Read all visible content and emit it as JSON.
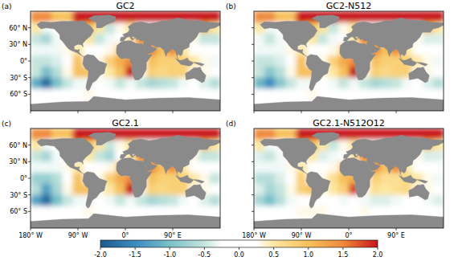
{
  "chart_data": {
    "type": "heatmap",
    "x": [
      -170,
      -150,
      -130,
      -110,
      -90,
      -70,
      -50,
      -30,
      -10,
      10,
      30,
      50,
      70,
      90,
      110,
      130,
      150,
      170
    ],
    "y": [
      80,
      60,
      40,
      20,
      0,
      -20,
      -40,
      -60,
      -80
    ],
    "xlim": [
      -180,
      180
    ],
    "ylim": [
      -90,
      90
    ],
    "xticks": [
      {
        "value": -180,
        "label": "180° W"
      },
      {
        "value": -90,
        "label": "90° W"
      },
      {
        "value": 0,
        "label": "0°"
      },
      {
        "value": 90,
        "label": "90° E"
      }
    ],
    "yticks": [
      {
        "value": 60,
        "label": "60° N"
      },
      {
        "value": 30,
        "label": "30° N"
      },
      {
        "value": 0,
        "label": "0°"
      },
      {
        "value": -30,
        "label": "30° S"
      },
      {
        "value": -60,
        "label": "60° S"
      }
    ],
    "color_range": [
      -2,
      2
    ],
    "color_ticks": [
      {
        "value": -2,
        "label": "-2.0"
      },
      {
        "value": -1.5,
        "label": "-1.5"
      },
      {
        "value": -1,
        "label": "-1.0"
      },
      {
        "value": -0.5,
        "label": "-0.5"
      },
      {
        "value": 0,
        "label": "0.0"
      },
      {
        "value": 0.5,
        "label": "0.5"
      },
      {
        "value": 1,
        "label": "1.0"
      },
      {
        "value": 1.5,
        "label": "1.5"
      },
      {
        "value": 2,
        "label": "2.0"
      }
    ],
    "panels": [
      {
        "label": "(a)",
        "title": "GC2",
        "values": [
          [
            1.5,
            1.5,
            1.0,
            1.0,
            2.0,
            2.0,
            2.0,
            2.0,
            2.0,
            2.0,
            2.0,
            2.0,
            2.0,
            2.0,
            2.0,
            2.0,
            2.0,
            2.0
          ],
          [
            0.5,
            -0.3,
            0,
            0,
            1.5,
            1.0,
            0.5,
            -0.5,
            0.3,
            0.5,
            0,
            0,
            0,
            0,
            0,
            0,
            1.0,
            0.5
          ],
          [
            -0.5,
            -0.7,
            -0.3,
            0,
            0,
            0.5,
            -0.5,
            -0.3,
            0.2,
            0.5,
            1.5,
            1.0,
            0,
            0,
            0,
            0.3,
            -0.5,
            -0.5
          ],
          [
            -0.3,
            -0.3,
            -0.3,
            0.3,
            0.5,
            0.2,
            0,
            0.3,
            0.8,
            0,
            1.0,
            1.5,
            1.0,
            1.5,
            0.5,
            0.2,
            0,
            -0.2
          ],
          [
            -0.5,
            -0.5,
            -0.4,
            0.2,
            1.0,
            0,
            0.3,
            0.8,
            1.2,
            1.5,
            0,
            1.0,
            0.8,
            0.8,
            0.8,
            0.5,
            0.3,
            -0.3
          ],
          [
            -0.5,
            -1.0,
            -0.6,
            0.3,
            1.0,
            1.0,
            0.3,
            0.5,
            1.0,
            2.0,
            0.3,
            0.8,
            0.7,
            0.8,
            0.8,
            0.3,
            0.3,
            -0.2
          ],
          [
            -1.2,
            -1.8,
            -1.0,
            -0.5,
            -0.3,
            -0.3,
            0,
            -0.3,
            -0.5,
            -0.3,
            -0.5,
            -0.7,
            -0.6,
            -0.5,
            -0.3,
            -0.2,
            -0.4,
            -0.6
          ],
          [
            0.1,
            0,
            -0.2,
            0,
            0.2,
            0.3,
            0.2,
            0,
            0,
            0,
            0.2,
            0,
            0,
            0,
            0.1,
            0,
            0,
            0
          ],
          [
            0,
            0,
            0,
            0,
            0,
            0,
            0,
            0,
            0,
            0,
            0,
            0,
            0,
            0,
            0,
            0,
            0,
            0
          ]
        ]
      },
      {
        "label": "(b)",
        "title": "GC2-N512",
        "values": [
          [
            1.5,
            1.5,
            1.0,
            1.0,
            2.0,
            2.0,
            2.0,
            2.0,
            2.0,
            2.0,
            2.0,
            2.0,
            2.0,
            2.0,
            2.0,
            2.0,
            2.0,
            2.0
          ],
          [
            0.5,
            -0.3,
            0,
            0,
            1.5,
            1.0,
            0.5,
            -0.5,
            0.3,
            0.5,
            0,
            0,
            0,
            0,
            0,
            0,
            1.0,
            0.5
          ],
          [
            -0.3,
            -0.5,
            -0.3,
            0,
            0,
            0.5,
            -0.5,
            -0.3,
            0.2,
            0.5,
            1.5,
            1.0,
            0,
            0,
            0,
            0.3,
            -0.4,
            -0.4
          ],
          [
            -0.3,
            -0.3,
            -0.3,
            0.3,
            0.5,
            0.2,
            0,
            0.3,
            0.8,
            0,
            1.0,
            1.5,
            1.0,
            1.5,
            0.5,
            0.2,
            0,
            -0.2
          ],
          [
            -0.5,
            -0.5,
            -0.4,
            0.2,
            1.0,
            0,
            0.3,
            0.8,
            1.2,
            1.5,
            0,
            1.0,
            0.8,
            0.8,
            0.8,
            0.5,
            0.3,
            -0.3
          ],
          [
            -0.5,
            -0.9,
            -0.6,
            0.3,
            1.0,
            1.0,
            0.3,
            0.5,
            1.0,
            2.0,
            0.3,
            0.8,
            0.7,
            0.8,
            0.8,
            0.3,
            0.3,
            -0.2
          ],
          [
            -1.1,
            -1.5,
            -0.9,
            -0.5,
            -0.3,
            -0.3,
            0,
            -0.3,
            -0.5,
            -0.3,
            -0.5,
            -0.7,
            -0.6,
            -0.5,
            -0.3,
            -0.2,
            -0.4,
            -0.6
          ],
          [
            0.1,
            0,
            -0.2,
            0,
            0.2,
            0.3,
            0.2,
            0,
            0,
            0,
            0.2,
            0,
            0,
            0,
            0.1,
            0,
            0,
            0
          ],
          [
            0,
            0,
            0,
            0,
            0,
            0,
            0,
            0,
            0,
            0,
            0,
            0,
            0,
            0,
            0,
            0,
            0,
            0
          ]
        ]
      },
      {
        "label": "(c)",
        "title": "GC2.1",
        "values": [
          [
            1.5,
            1.5,
            1.0,
            1.0,
            2.0,
            2.0,
            2.0,
            2.0,
            2.0,
            2.0,
            2.0,
            2.0,
            2.0,
            2.0,
            2.0,
            2.0,
            2.0,
            2.0
          ],
          [
            0.5,
            -0.3,
            0,
            0,
            1.5,
            1.0,
            0.5,
            -0.5,
            0.3,
            0.5,
            0,
            0,
            0,
            0,
            0,
            0,
            1.0,
            0.5
          ],
          [
            -0.5,
            -0.7,
            -0.3,
            0,
            0,
            0.5,
            -0.5,
            -0.7,
            0.2,
            0.5,
            1.5,
            1.0,
            0,
            0,
            0,
            0.3,
            -0.5,
            -0.5
          ],
          [
            -0.3,
            -0.3,
            -0.3,
            0.3,
            0.5,
            0.2,
            0,
            0.3,
            0.8,
            0,
            1.0,
            1.5,
            1.0,
            1.5,
            0.5,
            0.2,
            0,
            -0.2
          ],
          [
            -0.8,
            -0.8,
            -0.6,
            0.2,
            1.0,
            0,
            0.3,
            0.8,
            1.2,
            1.5,
            0,
            1.0,
            0.8,
            0.8,
            0.8,
            0.5,
            0.3,
            -0.5
          ],
          [
            -0.6,
            -1.3,
            -0.7,
            0.3,
            1.0,
            1.0,
            0.3,
            0.5,
            1.0,
            2.0,
            0.3,
            0.8,
            0.7,
            0.8,
            0.8,
            0.3,
            0.3,
            -0.2
          ],
          [
            -1.3,
            -1.8,
            -1.0,
            -0.5,
            -0.3,
            -0.3,
            0,
            -0.3,
            -0.5,
            -0.3,
            -0.5,
            -0.7,
            -0.6,
            -0.5,
            -0.3,
            -0.2,
            -0.4,
            -0.6
          ],
          [
            0.1,
            0,
            -0.2,
            0,
            0.2,
            0.3,
            0.2,
            0,
            0,
            0,
            0.2,
            0,
            0,
            0,
            0.1,
            0,
            0,
            0
          ],
          [
            0,
            0,
            0,
            0,
            0,
            0,
            0,
            0,
            0,
            0,
            0,
            0,
            0,
            0,
            0,
            0,
            0,
            0
          ]
        ]
      },
      {
        "label": "(d)",
        "title": "GC2.1-N512O12",
        "values": [
          [
            1.5,
            1.5,
            1.0,
            1.0,
            2.0,
            2.0,
            2.0,
            2.0,
            2.0,
            2.0,
            2.0,
            2.0,
            2.0,
            2.0,
            2.0,
            2.0,
            2.0,
            2.0
          ],
          [
            0.5,
            -0.3,
            0,
            0,
            1.5,
            1.0,
            0.5,
            -0.5,
            0.3,
            0.5,
            0,
            0,
            0,
            0,
            0,
            0,
            1.0,
            0.5
          ],
          [
            -0.4,
            -0.5,
            -0.3,
            0,
            0,
            0.5,
            -0.4,
            -0.3,
            0.2,
            0.5,
            1.5,
            1.0,
            0,
            0,
            0,
            0.3,
            -0.4,
            -0.4
          ],
          [
            -0.3,
            -0.3,
            -0.3,
            0.3,
            0.5,
            0.2,
            0,
            0.3,
            0.8,
            0,
            1.0,
            1.5,
            1.0,
            1.5,
            0.5,
            0.2,
            0,
            -0.2
          ],
          [
            -0.6,
            -0.6,
            -0.4,
            0.2,
            0.8,
            0,
            0.3,
            0.6,
            1.0,
            1.2,
            0,
            0.8,
            0.6,
            0.6,
            0.7,
            0.5,
            0.3,
            -0.3
          ],
          [
            -0.4,
            -0.7,
            -0.5,
            0.3,
            0.8,
            1.0,
            0.3,
            0.5,
            0.8,
            1.8,
            0.3,
            0.6,
            0.5,
            0.6,
            0.7,
            0.3,
            0.3,
            -0.2
          ],
          [
            -0.7,
            -1.0,
            -0.6,
            -0.3,
            -0.2,
            -0.2,
            0,
            -0.2,
            -0.3,
            -0.2,
            -0.3,
            -0.4,
            -0.4,
            -0.3,
            -0.2,
            -0.1,
            -0.3,
            -0.4
          ],
          [
            0.2,
            0.1,
            0,
            0.1,
            0.3,
            0.3,
            0.3,
            0.1,
            0.1,
            0.1,
            0.3,
            0.1,
            0.1,
            0.1,
            0.2,
            0.1,
            0.1,
            0.1
          ],
          [
            0,
            0,
            0,
            0,
            0,
            0,
            0,
            0,
            0,
            0,
            0,
            0,
            0,
            0,
            0,
            0,
            0,
            0
          ]
        ]
      }
    ]
  }
}
